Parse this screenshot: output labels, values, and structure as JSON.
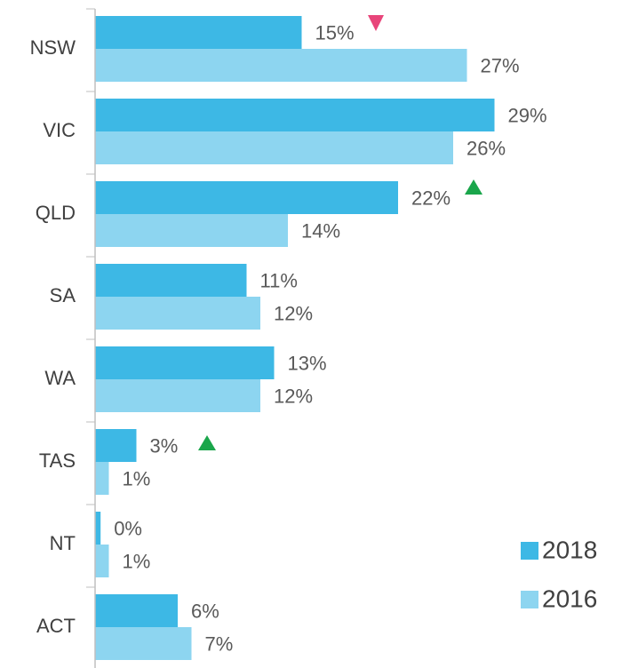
{
  "chart_data": {
    "type": "bar",
    "orientation": "horizontal",
    "categories": [
      "NSW",
      "VIC",
      "QLD",
      "SA",
      "WA",
      "TAS",
      "NT",
      "ACT"
    ],
    "series": [
      {
        "name": "2018",
        "color": "#3db8e5",
        "values": [
          15,
          29,
          22,
          11,
          13,
          3,
          0.4,
          6
        ],
        "value_labels": [
          "15%",
          "29%",
          "22%",
          "11%",
          "13%",
          "3%",
          "0%",
          "6%"
        ]
      },
      {
        "name": "2016",
        "color": "#8dd5f0",
        "values": [
          27,
          26,
          14,
          12,
          12,
          1,
          1,
          7
        ],
        "value_labels": [
          "27%",
          "26%",
          "14%",
          "12%",
          "12%",
          "1%",
          "1%",
          "7%"
        ]
      }
    ],
    "legend": "bottom-right"
  }
}
